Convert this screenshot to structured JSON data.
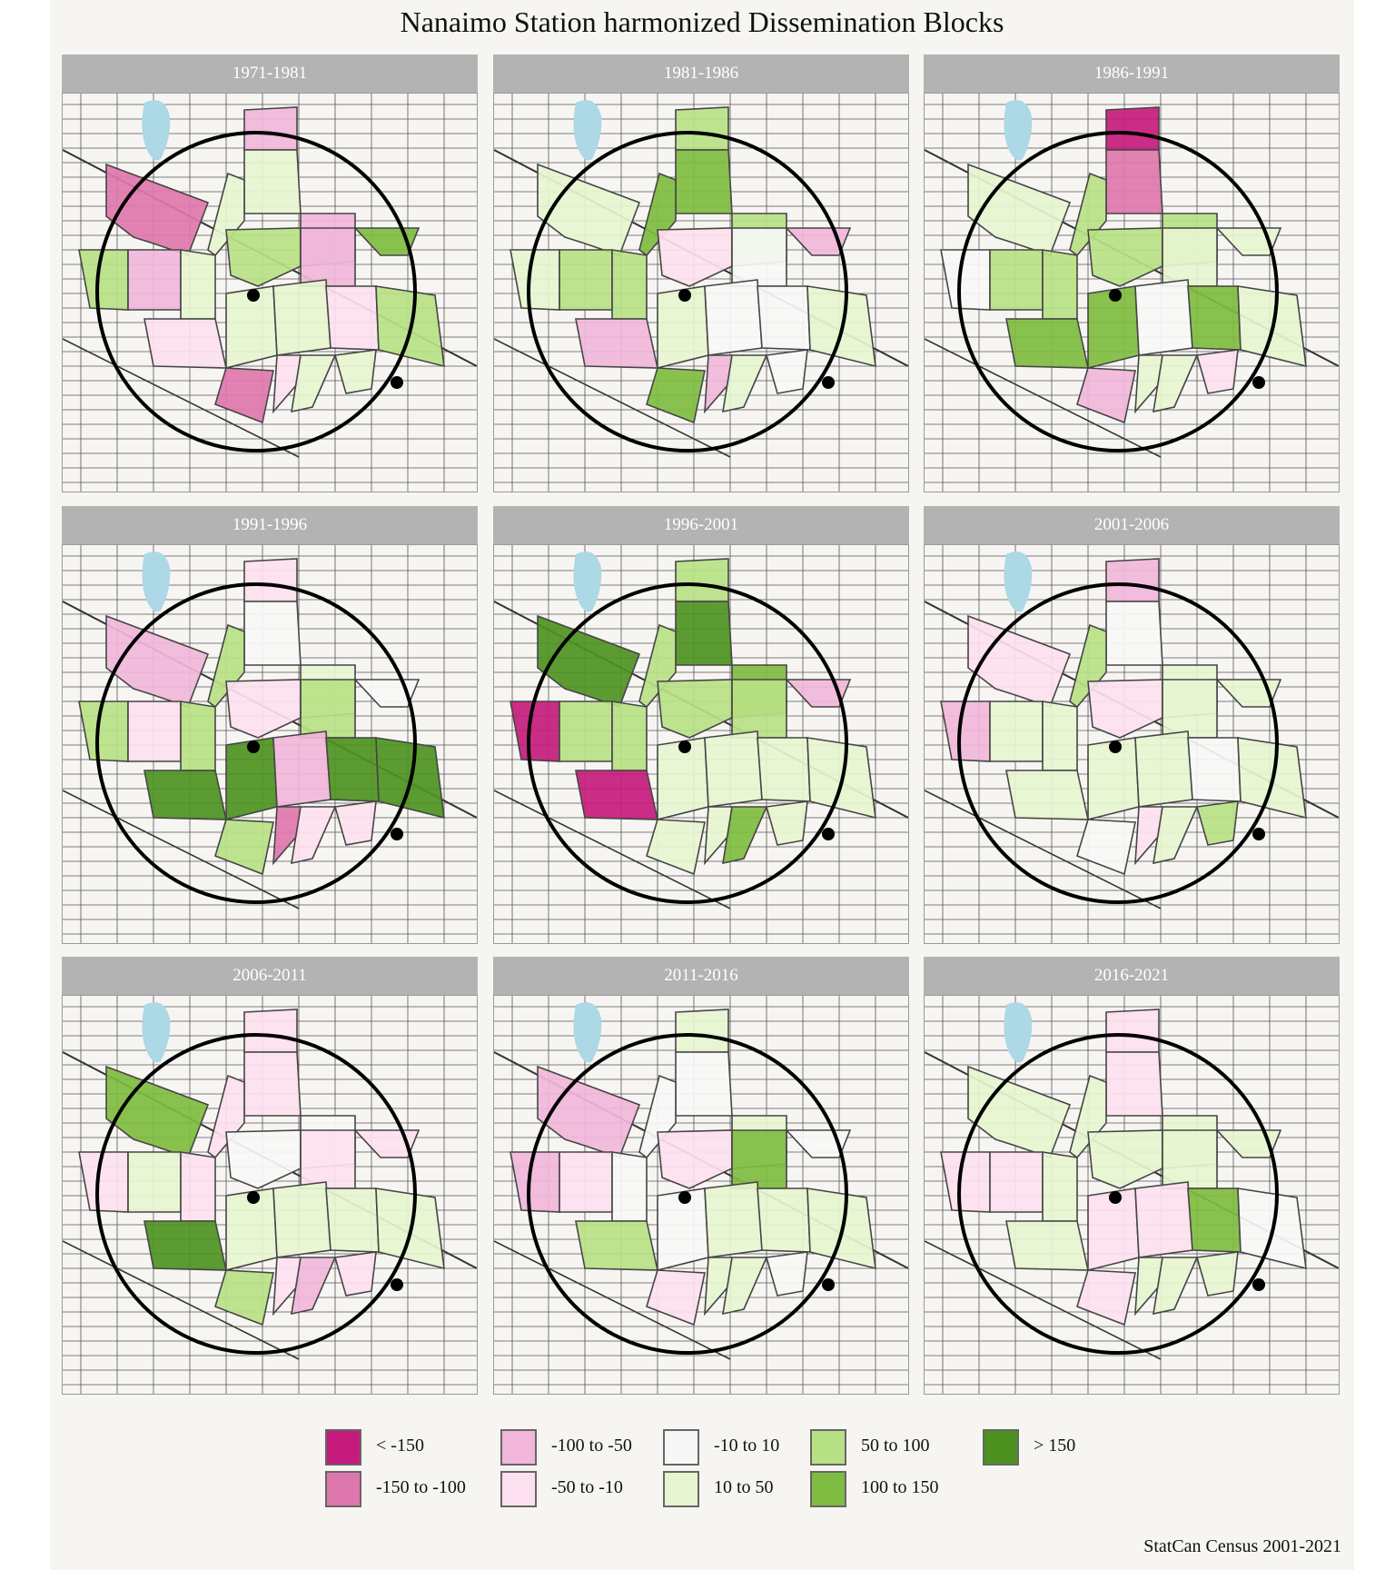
{
  "title": "Nanaimo Station harmonized Dissemination Blocks",
  "caption": "StatCan Census 2001-2021",
  "colors": {
    "lt_m150": "#c51b7d",
    "m150_m100": "#de77ae",
    "m100_m50": "#f1b6da",
    "m50_m10": "#fde0ef",
    "m10_10": "#f7f7f7",
    "p10_50": "#e6f5d0",
    "p50_100": "#b8e186",
    "p100_150": "#7fbc41",
    "gt_150": "#4d9221",
    "water": "#add8e6"
  },
  "legend": [
    {
      "key": "lt_m150",
      "label": "< -150"
    },
    {
      "key": "m150_m100",
      "label": "-150 to -100"
    },
    {
      "key": "m100_m50",
      "label": "-100 to -50"
    },
    {
      "key": "m50_m10",
      "label": "-50 to -10"
    },
    {
      "key": "m10_10",
      "label": "-10 to 10"
    },
    {
      "key": "p10_50",
      "label": "10 to 50"
    },
    {
      "key": "p50_100",
      "label": "50 to 100"
    },
    {
      "key": "p100_150",
      "label": "100 to 150"
    },
    {
      "key": "gt_150",
      "label": "> 150"
    }
  ],
  "panels": [
    {
      "label": "1971-1981",
      "blocks": [
        "m150_m100",
        "m100_m50",
        "p10_50",
        "p10_50",
        "p50_100",
        "p50_100",
        "m100_m50",
        "m100_m50",
        "p100_150",
        "m100_m50",
        "p10_50",
        "m50_m10",
        "p10_50",
        "p10_50",
        "m50_m10",
        "m150_m100",
        "m50_m10",
        "p10_50",
        "p50_100",
        "p10_50"
      ]
    },
    {
      "label": "1981-1986",
      "blocks": [
        "p10_50",
        "p50_100",
        "p100_150",
        "p100_150",
        "p10_50",
        "m50_m10",
        "p50_100",
        "m10_10",
        "m100_m50",
        "p50_100",
        "p50_100",
        "m100_m50",
        "p10_50",
        "m10_10",
        "m10_10",
        "p100_150",
        "m100_m50",
        "p10_50",
        "p10_50",
        "m10_10"
      ]
    },
    {
      "label": "1986-1991",
      "blocks": [
        "p10_50",
        "lt_m150",
        "m150_m100",
        "p50_100",
        "m10_10",
        "p50_100",
        "p50_100",
        "p10_50",
        "p10_50",
        "p50_100",
        "p50_100",
        "p100_150",
        "p100_150",
        "m10_10",
        "p100_150",
        "m100_m50",
        "p10_50",
        "p10_50",
        "p10_50",
        "m50_m10"
      ]
    },
    {
      "label": "1991-1996",
      "blocks": [
        "m100_m50",
        "m50_m10",
        "m10_10",
        "p50_100",
        "p50_100",
        "m50_m10",
        "p10_50",
        "p50_100",
        "m10_10",
        "m50_m10",
        "p50_100",
        "gt_150",
        "gt_150",
        "m100_m50",
        "gt_150",
        "p50_100",
        "m150_m100",
        "m50_m10",
        "gt_150",
        "m50_m10"
      ]
    },
    {
      "label": "1996-2001",
      "blocks": [
        "gt_150",
        "p50_100",
        "gt_150",
        "p50_100",
        "lt_m150",
        "p50_100",
        "p100_150",
        "p50_100",
        "m100_m50",
        "p50_100",
        "p50_100",
        "lt_m150",
        "p10_50",
        "p10_50",
        "p10_50",
        "p10_50",
        "p10_50",
        "p100_150",
        "p10_50",
        "p10_50"
      ]
    },
    {
      "label": "2001-2006",
      "blocks": [
        "m50_m10",
        "m100_m50",
        "m10_10",
        "p50_100",
        "m100_m50",
        "m50_m10",
        "p10_50",
        "p10_50",
        "p10_50",
        "p10_50",
        "p10_50",
        "p10_50",
        "p10_50",
        "p10_50",
        "m10_10",
        "m10_10",
        "m50_m10",
        "p10_50",
        "p10_50",
        "p50_100"
      ]
    },
    {
      "label": "2006-2011",
      "blocks": [
        "p100_150",
        "m50_m10",
        "m50_m10",
        "m50_m10",
        "m50_m10",
        "m10_10",
        "m10_10",
        "m50_m10",
        "m50_m10",
        "p10_50",
        "m50_m10",
        "gt_150",
        "p10_50",
        "p10_50",
        "p10_50",
        "p50_100",
        "m50_m10",
        "m100_m50",
        "p10_50",
        "m50_m10"
      ]
    },
    {
      "label": "2011-2016",
      "blocks": [
        "m100_m50",
        "p10_50",
        "m10_10",
        "m10_10",
        "m100_m50",
        "m50_m10",
        "p10_50",
        "p100_150",
        "m10_10",
        "m50_m10",
        "m10_10",
        "p50_100",
        "m10_10",
        "p10_50",
        "p10_50",
        "m50_m10",
        "p10_50",
        "p10_50",
        "p10_50",
        "m10_10"
      ]
    },
    {
      "label": "2016-2021",
      "blocks": [
        "p10_50",
        "m50_m10",
        "m50_m10",
        "p10_50",
        "m50_m10",
        "p10_50",
        "p10_50",
        "p10_50",
        "p10_50",
        "m50_m10",
        "p10_50",
        "p10_50",
        "m50_m10",
        "m50_m10",
        "p100_150",
        "m50_m10",
        "p10_50",
        "p10_50",
        "m10_10",
        "p10_50"
      ]
    }
  ]
}
